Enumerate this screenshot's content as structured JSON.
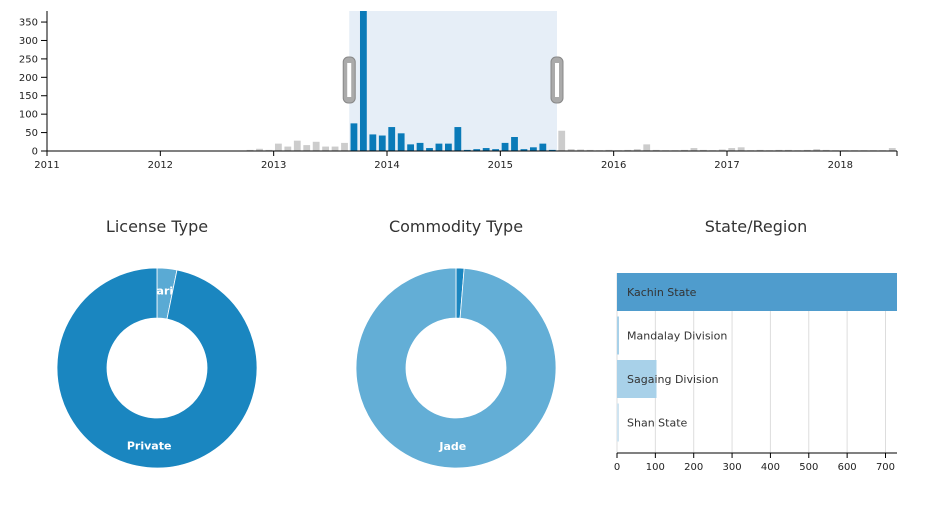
{
  "colors": {
    "selected": "#0a7ab8",
    "unselected": "#cccccc",
    "brush": "#e6eef7",
    "handle": "#aaaaaa",
    "license_private": "#1a86c0",
    "license_sharing": "#5aaad4",
    "commodity_jade": "#63aed6",
    "commodity_other": "#1a86c0",
    "kachin": "#4f9ccd",
    "mandalay": "#a8d1e9",
    "sagaing": "#a8d1e9",
    "shan": "#cfe4f1",
    "grid": "#dddddd"
  },
  "chart_data": [
    {
      "type": "bar",
      "title": "",
      "xlabel": "",
      "ylabel": "",
      "ylim": [
        0,
        380
      ],
      "xlim": [
        "2011-01",
        "2018-07"
      ],
      "y_ticks": [
        0,
        50,
        100,
        150,
        200,
        250,
        300,
        350
      ],
      "x_ticks": [
        "2011",
        "2012",
        "2013",
        "2014",
        "2015",
        "2016",
        "2017",
        "2018"
      ],
      "brush": [
        "2013-09",
        "2015-07"
      ],
      "months": [
        "2012-10",
        "2012-11",
        "2012-12",
        "2013-01",
        "2013-02",
        "2013-03",
        "2013-04",
        "2013-05",
        "2013-06",
        "2013-07",
        "2013-08",
        "2013-09",
        "2013-10",
        "2013-11",
        "2013-12",
        "2014-01",
        "2014-02",
        "2014-03",
        "2014-04",
        "2014-05",
        "2014-06",
        "2014-07",
        "2014-08",
        "2014-09",
        "2014-10",
        "2014-11",
        "2014-12",
        "2015-01",
        "2015-02",
        "2015-03",
        "2015-04",
        "2015-05",
        "2015-06",
        "2015-07",
        "2015-08",
        "2015-09",
        "2015-10",
        "2015-11",
        "2015-12",
        "2016-01",
        "2016-02",
        "2016-03",
        "2016-04",
        "2016-05",
        "2016-06",
        "2016-07",
        "2016-08",
        "2016-09",
        "2016-10",
        "2016-11",
        "2016-12",
        "2017-01",
        "2017-02",
        "2017-03",
        "2017-04",
        "2017-05",
        "2017-06",
        "2017-07",
        "2017-08",
        "2017-09",
        "2017-10",
        "2017-11",
        "2017-12",
        "2018-01",
        "2018-02",
        "2018-03",
        "2018-04",
        "2018-05",
        "2018-06"
      ],
      "values": [
        3,
        6,
        3,
        20,
        12,
        28,
        16,
        25,
        12,
        12,
        22,
        75,
        380,
        45,
        42,
        65,
        48,
        18,
        22,
        8,
        20,
        20,
        65,
        3,
        5,
        8,
        5,
        22,
        38,
        5,
        10,
        20,
        3,
        55,
        5,
        4,
        3,
        2,
        3,
        2,
        3,
        5,
        18,
        3,
        2,
        2,
        3,
        8,
        3,
        2,
        4,
        8,
        10,
        2,
        3,
        2,
        3,
        3,
        2,
        3,
        5,
        3,
        2,
        2,
        2,
        2,
        2,
        2,
        8
      ]
    },
    {
      "type": "pie",
      "title": "License Type",
      "labels": [
        "Sharing",
        "Private"
      ],
      "values": [
        3.2,
        96.8
      ]
    },
    {
      "type": "pie",
      "title": "Commodity Type",
      "labels": [
        "",
        "Jade"
      ],
      "values": [
        1.3,
        98.7
      ]
    },
    {
      "type": "bar",
      "orientation": "horizontal",
      "title": "State/Region",
      "categories": [
        "Kachin State",
        "Mandalay Division",
        "Sagaing Division",
        "Shan State"
      ],
      "values": [
        730,
        3,
        103,
        5
      ],
      "xlim": [
        0,
        730
      ],
      "x_ticks": [
        0,
        100,
        200,
        300,
        400,
        500,
        600,
        700
      ],
      "grid": true
    }
  ]
}
